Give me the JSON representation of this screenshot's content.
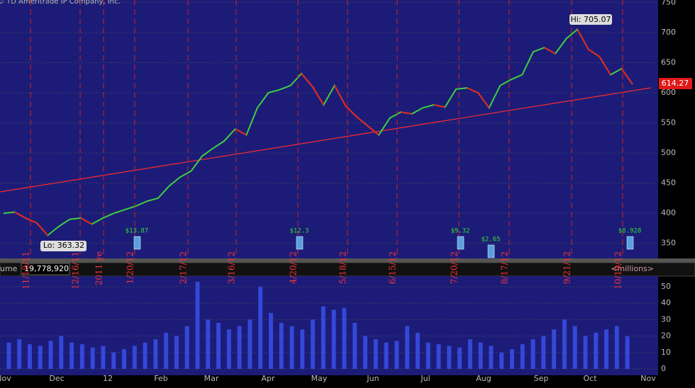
{
  "chart_data": [
    {
      "type": "line",
      "copyright": "© TD Ameritrade IP Company, Inc.",
      "color": "#3fcf3f",
      "values": [
        400,
        402,
        392,
        384,
        363.32,
        378,
        390,
        392,
        382,
        392,
        400,
        406,
        412,
        420,
        425,
        445,
        460,
        470,
        495,
        508,
        520,
        540,
        530,
        575,
        600,
        605,
        612,
        632,
        610,
        580,
        612,
        578,
        560,
        545,
        530,
        558,
        568,
        565,
        575,
        580,
        576,
        606,
        608,
        600,
        575,
        612,
        622,
        630,
        668,
        675,
        665,
        690,
        705.07,
        672,
        660,
        630,
        640,
        614.27
      ],
      "ylim": [
        325,
        754
      ],
      "yticks": [
        350,
        400,
        450,
        500,
        550,
        600,
        650,
        700,
        750
      ],
      "grid": true,
      "high_label": "Hi: 705.07",
      "low_label": "Lo: 363.32",
      "last_price_label": "614.27",
      "event_labels": [
        "11/18/11",
        "12/16/11",
        "2011 ye",
        "1/20/12",
        "2/17/12",
        "3/16/12",
        "4/20/12",
        "5/18/12",
        "6/15/12",
        "7/20/12",
        "8/17/12",
        "9/21/12",
        "10/19/12"
      ],
      "dividend_labels": [
        "$13.87",
        "$12.3",
        "$9.32",
        "$2.65",
        "$8.928"
      ]
    },
    {
      "type": "bar",
      "title": "ume",
      "last_value_label": "19,778,920",
      "unit_label": "<millions>",
      "color": "#3448d8",
      "values": [
        16,
        18,
        15,
        14,
        17,
        20,
        16,
        15,
        13,
        14,
        10,
        12,
        14,
        16,
        18,
        22,
        20,
        26,
        53,
        30,
        28,
        24,
        26,
        30,
        50,
        34,
        28,
        26,
        24,
        30,
        38,
        36,
        37,
        28,
        20,
        18,
        16,
        17,
        26,
        22,
        16,
        15,
        14,
        13,
        18,
        16,
        14,
        10,
        12,
        15,
        18,
        20,
        24,
        30,
        26,
        20,
        22,
        24,
        26,
        19.78
      ],
      "ylim": [
        0,
        56
      ],
      "yticks": [
        0,
        10,
        20,
        30,
        40,
        50
      ],
      "grid": true,
      "x_labels": [
        "Nov",
        "Dec",
        "12",
        "Feb",
        "Mar",
        "Apr",
        "May",
        "Jun",
        "Jul",
        "Aug",
        "Sep",
        "Oct",
        "Nov"
      ]
    }
  ]
}
